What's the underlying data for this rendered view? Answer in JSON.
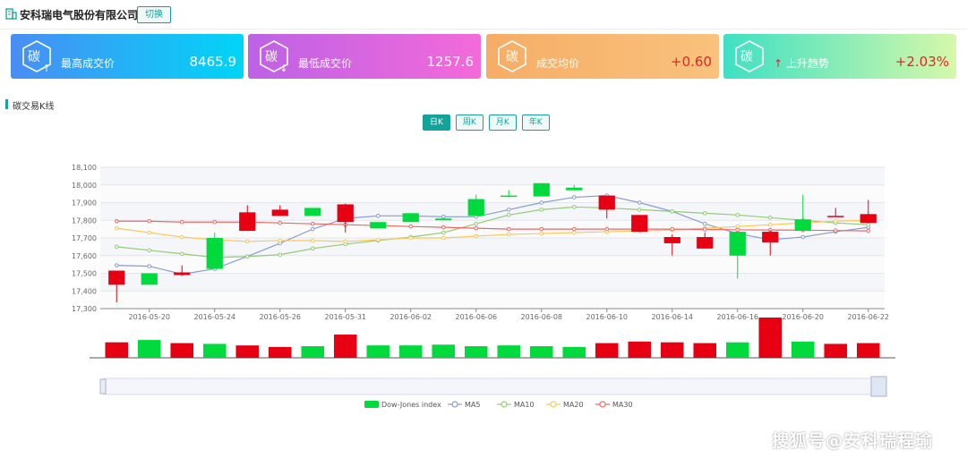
{
  "header": {
    "company": "安科瑞电气股份有限公司",
    "switch_label": "切换"
  },
  "cards": [
    {
      "icon_text": "碳",
      "label": "最高成交价",
      "value": "8465.9",
      "arrow": "↑"
    },
    {
      "icon_text": "碳",
      "label": "最低成交价",
      "value": "1257.6",
      "arrow": "↓"
    },
    {
      "icon_text": "碳",
      "label": "成交均价",
      "value": "+0.60",
      "arrow": ""
    },
    {
      "icon_text": "碳",
      "label": "上升趋势",
      "value": "+2.03%",
      "arrow": "↑"
    }
  ],
  "section": {
    "title": "碳交易K线"
  },
  "period_tabs": [
    {
      "label": "日K",
      "active": true
    },
    {
      "label": "周K",
      "active": false
    },
    {
      "label": "月K",
      "active": false
    },
    {
      "label": "年K",
      "active": false
    }
  ],
  "watermark": "搜狐号@安科瑞程瑜",
  "colors": {
    "accent": "#14a39a",
    "up": "#e60012",
    "down": "#00da3c"
  },
  "chart_data": {
    "type": "candlestick",
    "ylim": [
      17300,
      18100
    ],
    "y_ticks": [
      "17,300",
      "17,400",
      "17,500",
      "17,600",
      "17,700",
      "17,800",
      "17,900",
      "18,000",
      "18,100"
    ],
    "x_tick_labels": [
      "2016-05-20",
      "2016-05-24",
      "2016-05-26",
      "2016-05-31",
      "2016-06-02",
      "2016-06-06",
      "2016-06-08",
      "2016-06-10",
      "2016-06-14",
      "2016-06-16",
      "2016-06-20",
      "2016-06-22"
    ],
    "x_tick_index": [
      1,
      3,
      5,
      7,
      9,
      11,
      13,
      15,
      17,
      19,
      21,
      23
    ],
    "candles": [
      {
        "o": 17435,
        "c": 17515,
        "l": 17335,
        "h": 17515
      },
      {
        "o": 17500,
        "c": 17435,
        "l": 17435,
        "h": 17500
      },
      {
        "o": 17490,
        "c": 17505,
        "l": 17490,
        "h": 17545
      },
      {
        "o": 17700,
        "c": 17525,
        "l": 17525,
        "h": 17730
      },
      {
        "o": 17740,
        "c": 17845,
        "l": 17740,
        "h": 17885
      },
      {
        "o": 17825,
        "c": 17860,
        "l": 17825,
        "h": 17885
      },
      {
        "o": 17870,
        "c": 17825,
        "l": 17825,
        "h": 17870
      },
      {
        "o": 17790,
        "c": 17890,
        "l": 17730,
        "h": 17895
      },
      {
        "o": 17790,
        "c": 17755,
        "l": 17755,
        "h": 17790
      },
      {
        "o": 17840,
        "c": 17790,
        "l": 17790,
        "h": 17840
      },
      {
        "o": 17810,
        "c": 17800,
        "l": 17800,
        "h": 17815
      },
      {
        "o": 17920,
        "c": 17825,
        "l": 17825,
        "h": 17945
      },
      {
        "o": 17940,
        "c": 17935,
        "l": 17930,
        "h": 17970
      },
      {
        "o": 18010,
        "c": 17935,
        "l": 17935,
        "h": 18010
      },
      {
        "o": 17985,
        "c": 17970,
        "l": 17970,
        "h": 18000
      },
      {
        "o": 17860,
        "c": 17940,
        "l": 17810,
        "h": 17940
      },
      {
        "o": 17735,
        "c": 17830,
        "l": 17735,
        "h": 17830
      },
      {
        "o": 17670,
        "c": 17705,
        "l": 17600,
        "h": 17720
      },
      {
        "o": 17640,
        "c": 17705,
        "l": 17640,
        "h": 17730
      },
      {
        "o": 17735,
        "c": 17600,
        "l": 17470,
        "h": 17735
      },
      {
        "o": 17675,
        "c": 17735,
        "l": 17600,
        "h": 17745
      },
      {
        "o": 17805,
        "c": 17740,
        "l": 17740,
        "h": 17945
      },
      {
        "o": 17825,
        "c": 17825,
        "l": 17825,
        "h": 17870
      },
      {
        "o": 17785,
        "c": 17835,
        "l": 17785,
        "h": 17915
      }
    ],
    "series": [
      {
        "name": "MA5",
        "color": "#8a9bd1",
        "values": [
          17545,
          17540,
          17495,
          17525,
          17595,
          17670,
          17750,
          17810,
          17825,
          17825,
          17820,
          17820,
          17860,
          17900,
          17930,
          17940,
          17900,
          17850,
          17780,
          17725,
          17690,
          17705,
          17735,
          17760
        ]
      },
      {
        "name": "MA10",
        "color": "#91cc75",
        "values": [
          17650,
          17630,
          17610,
          17590,
          17595,
          17605,
          17640,
          17665,
          17685,
          17705,
          17730,
          17780,
          17830,
          17860,
          17875,
          17870,
          17860,
          17850,
          17840,
          17830,
          17815,
          17800,
          17785,
          17775
        ]
      },
      {
        "name": "MA20",
        "color": "#fac858",
        "values": [
          17755,
          17730,
          17705,
          17690,
          17680,
          17685,
          17685,
          17680,
          17690,
          17700,
          17700,
          17710,
          17720,
          17725,
          17730,
          17735,
          17740,
          17745,
          17755,
          17765,
          17775,
          17785,
          17795,
          17800
        ]
      },
      {
        "name": "MA30",
        "color": "#ee6666",
        "values": [
          17795,
          17795,
          17790,
          17790,
          17790,
          17785,
          17780,
          17775,
          17770,
          17765,
          17760,
          17755,
          17750,
          17750,
          17750,
          17750,
          17750,
          17750,
          17748,
          17746,
          17745,
          17744,
          17742,
          17740
        ]
      }
    ],
    "volumes": [
      1.0,
      1.15,
      0.95,
      0.9,
      0.8,
      0.7,
      0.75,
      1.5,
      0.8,
      0.8,
      0.85,
      0.75,
      0.8,
      0.75,
      0.7,
      0.95,
      1.05,
      1.0,
      0.95,
      1.0,
      2.6,
      1.05,
      0.9,
      0.95
    ],
    "legend": [
      "Dow-Jones index",
      "MA5",
      "MA10",
      "MA20",
      "MA30"
    ]
  }
}
